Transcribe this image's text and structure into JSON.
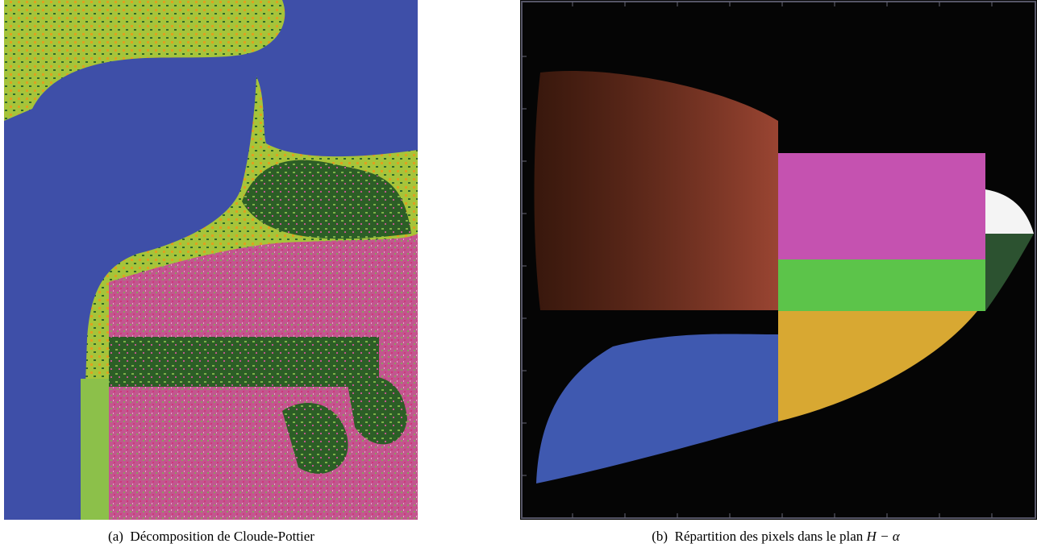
{
  "figures": [
    {
      "label": "(a)",
      "caption": "Décomposition de Cloude-Pottier"
    },
    {
      "label": "(b)",
      "caption": "Répartition des pixels dans le plan",
      "math": "H − α"
    }
  ]
}
